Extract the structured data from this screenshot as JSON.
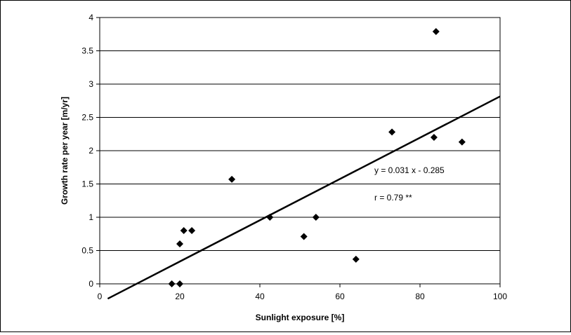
{
  "chart_data": {
    "type": "scatter",
    "title": "",
    "xlabel": "Sunlight exposure [%]",
    "ylabel": "Growth rate per year [m/yr]",
    "xlim": [
      0,
      100
    ],
    "ylim": [
      0,
      4
    ],
    "x_ticks": [
      "0",
      "20",
      "40",
      "60",
      "80",
      "100"
    ],
    "y_ticks": [
      "0",
      "0.5",
      "1",
      "1.5",
      "2",
      "2.5",
      "3",
      "3.5",
      "4"
    ],
    "grid": "horizontal",
    "legend": "none",
    "marker": "diamond",
    "marker_color": "#000000",
    "points": [
      {
        "x": 18,
        "y": 0.0
      },
      {
        "x": 20,
        "y": 0.0
      },
      {
        "x": 20,
        "y": 0.6
      },
      {
        "x": 21,
        "y": 0.8
      },
      {
        "x": 23,
        "y": 0.8
      },
      {
        "x": 33,
        "y": 1.57
      },
      {
        "x": 42.5,
        "y": 1.0
      },
      {
        "x": 51,
        "y": 0.71
      },
      {
        "x": 54,
        "y": 1.0
      },
      {
        "x": 64,
        "y": 0.37
      },
      {
        "x": 73,
        "y": 2.28
      },
      {
        "x": 83.5,
        "y": 2.2
      },
      {
        "x": 84,
        "y": 3.79
      },
      {
        "x": 90.5,
        "y": 2.13
      }
    ],
    "trendline": {
      "slope": 0.031,
      "intercept": -0.285,
      "x_range": [
        2,
        100
      ],
      "color": "#000000"
    },
    "annotations": [
      {
        "name": "equation",
        "text": "y = 0.031 x - 0.285"
      },
      {
        "name": "correlation",
        "text": "r =  0.79 **"
      }
    ]
  }
}
